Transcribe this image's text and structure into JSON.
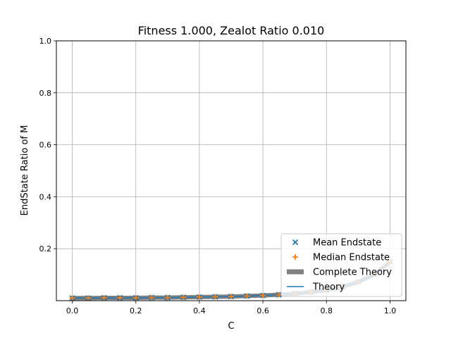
{
  "chart_data": {
    "type": "scatter",
    "title": "Fitness 1.000, Zealot Ratio 0.010",
    "xlabel": "C",
    "ylabel": "EndState Ratio of M",
    "xlim": [
      -0.05,
      1.05
    ],
    "ylim": [
      0.0,
      1.0
    ],
    "xticks": [
      "0.0",
      "0.2",
      "0.4",
      "0.6",
      "0.8",
      "1.0"
    ],
    "xtick_values": [
      0.0,
      0.2,
      0.4,
      0.6,
      0.8,
      1.0
    ],
    "yticks": [
      "0.2",
      "0.4",
      "0.6",
      "0.8",
      "1.0"
    ],
    "ytick_values": [
      0.2,
      0.4,
      0.6,
      0.8,
      1.0
    ],
    "grid": true,
    "legend_position": "lower-right",
    "x": [
      0.0,
      0.05,
      0.1,
      0.15,
      0.2,
      0.25,
      0.3,
      0.35,
      0.4,
      0.45,
      0.5,
      0.55,
      0.6,
      0.65,
      0.7,
      0.75,
      0.8,
      0.85,
      0.9,
      0.95,
      1.0
    ],
    "series": [
      {
        "name": "Mean Endstate",
        "kind": "scatter-x",
        "color": "#1f77b4",
        "values": [
          0.01,
          0.01,
          0.011,
          0.011,
          0.011,
          0.012,
          0.012,
          0.013,
          0.014,
          0.015,
          0.016,
          0.018,
          0.02,
          0.023,
          0.027,
          0.033,
          0.041,
          0.053,
          0.072,
          0.1,
          0.15
        ]
      },
      {
        "name": "Median Endstate",
        "kind": "scatter-plus",
        "color": "#ff7f0e",
        "values": [
          0.01,
          0.01,
          0.011,
          0.011,
          0.011,
          0.012,
          0.012,
          0.013,
          0.014,
          0.015,
          0.016,
          0.018,
          0.02,
          0.023,
          0.027,
          0.033,
          0.041,
          0.053,
          0.072,
          0.1,
          0.15
        ]
      },
      {
        "name": "Complete Theory",
        "kind": "thick-line",
        "color": "#808080",
        "values": [
          0.01,
          0.01,
          0.011,
          0.011,
          0.011,
          0.012,
          0.012,
          0.013,
          0.014,
          0.015,
          0.016,
          0.018,
          0.02,
          0.023,
          0.027,
          0.033,
          0.041,
          0.053,
          0.072,
          0.1,
          0.15
        ]
      },
      {
        "name": "Theory",
        "kind": "line",
        "color": "#1f77b4",
        "values": [
          0.01,
          0.01,
          0.011,
          0.011,
          0.011,
          0.012,
          0.012,
          0.013,
          0.014,
          0.015,
          0.016,
          0.018,
          0.02,
          0.023,
          0.027,
          0.033,
          0.041,
          0.053,
          0.072,
          0.1,
          0.15
        ]
      }
    ]
  },
  "colors": {
    "grid": "#b0b0b0",
    "axes": "#000000",
    "legend_border": "#cccccc"
  }
}
